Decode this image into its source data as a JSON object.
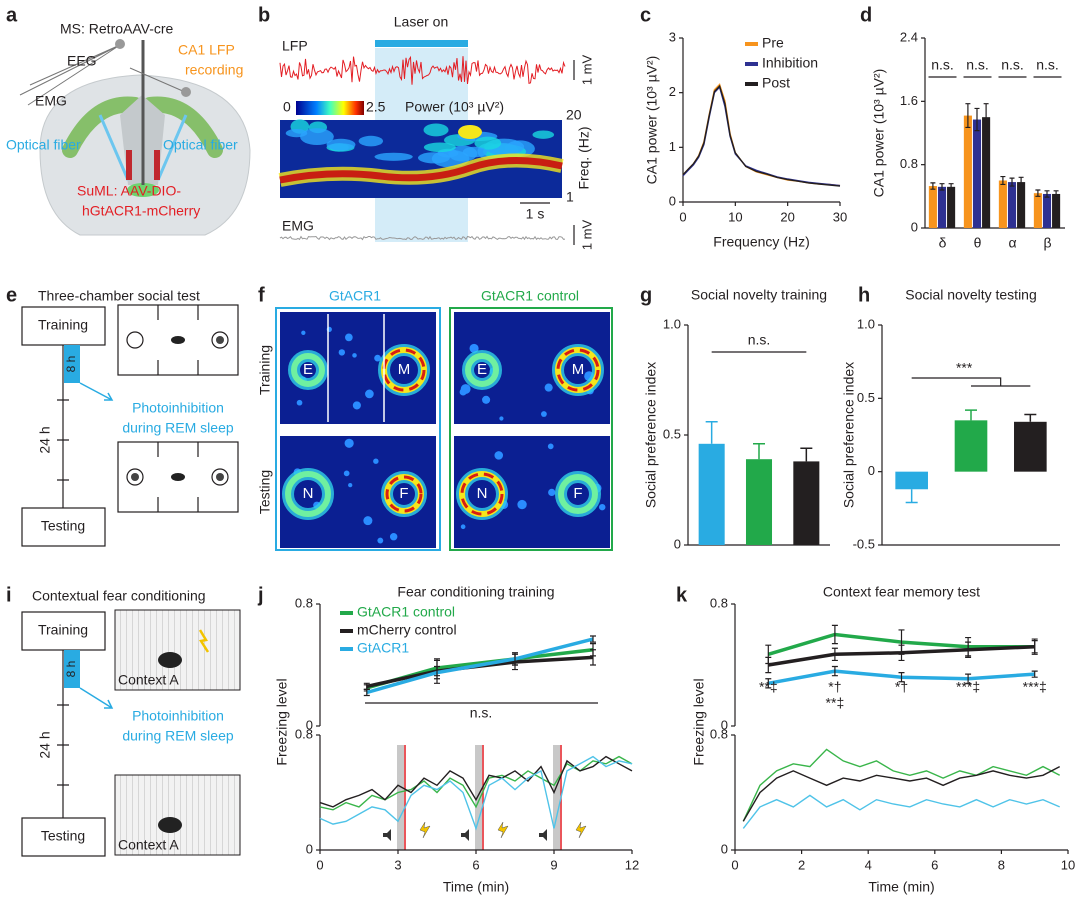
{
  "panel_labels": [
    "a",
    "b",
    "c",
    "d",
    "e",
    "f",
    "g",
    "h",
    "i",
    "j",
    "k"
  ],
  "a": {
    "ms": "MS: RetroAAV-cre",
    "eeg": "EEG",
    "lfp": [
      "CA1 LFP",
      "recording"
    ],
    "emg": "EMG",
    "fiber_left": "Optical fiber",
    "fiber_right": "Optical fiber",
    "suml": [
      "SuML: AAV-DIO-",
      "hGtACR1-mCherry"
    ]
  },
  "b": {
    "laser": "Laser on",
    "lfp": "LFP",
    "lfp_scale": "1 mV",
    "cbar_ticks": [
      0,
      2.5
    ],
    "cbar_label": "Power (10³ µV²)",
    "freq_ticks": [
      1,
      20
    ],
    "freq_label": "Freq. (Hz)",
    "time_scale": "1 s",
    "emg": "EMG",
    "emg_scale": "1 mV"
  },
  "e": {
    "title": "Three-chamber social test",
    "training": "Training",
    "gap": "8 h",
    "day": "24 h",
    "photo": [
      "Photoinhibition",
      "during REM sleep"
    ],
    "testing": "Testing"
  },
  "f": {
    "groups": [
      "GtACR1",
      "GtACR1 control"
    ],
    "rows": [
      "Training",
      "Testing"
    ],
    "labels": [
      [
        "E",
        "M",
        "E",
        "M"
      ],
      [
        "N",
        "F",
        "N",
        "F"
      ]
    ]
  },
  "i": {
    "title": "Contextual fear conditioning",
    "training": "Training",
    "gap": "8 h",
    "context": [
      "Context A",
      "Context A"
    ],
    "day": "24 h",
    "photo": [
      "Photoinhibition",
      "during REM sleep"
    ],
    "testing": "Testing"
  },
  "chart_data": [
    {
      "type": "line",
      "xlabel": "Frequency (Hz)",
      "ylabel": "CA1 power (10³ µV²)",
      "xlim": [
        0,
        30
      ],
      "xticks": [
        0,
        10,
        20,
        30
      ],
      "ylim": [
        0,
        3
      ],
      "yticks": [
        0,
        1,
        2,
        3
      ],
      "x": [
        0,
        1,
        2,
        3,
        4,
        5,
        6,
        7,
        8,
        9,
        10,
        12,
        14,
        16,
        18,
        20,
        22,
        24,
        26,
        28,
        30
      ],
      "series": [
        {
          "name": "Pre",
          "color": "#f7941d",
          "values": [
            0.5,
            0.6,
            0.7,
            0.85,
            1.1,
            1.6,
            2.05,
            2.15,
            1.85,
            1.25,
            0.9,
            0.65,
            0.55,
            0.5,
            0.45,
            0.4,
            0.38,
            0.35,
            0.33,
            0.32,
            0.3
          ]
        },
        {
          "name": "Inhibition",
          "color": "#2e3192",
          "values": [
            0.48,
            0.58,
            0.68,
            0.82,
            1.05,
            1.55,
            2.0,
            2.1,
            1.75,
            1.2,
            0.88,
            0.66,
            0.58,
            0.52,
            0.46,
            0.42,
            0.39,
            0.36,
            0.34,
            0.32,
            0.3
          ]
        },
        {
          "name": "Post",
          "color": "#231f20",
          "values": [
            0.5,
            0.6,
            0.7,
            0.84,
            1.08,
            1.58,
            2.02,
            2.12,
            1.8,
            1.22,
            0.9,
            0.65,
            0.56,
            0.51,
            0.45,
            0.41,
            0.38,
            0.35,
            0.33,
            0.31,
            0.29
          ]
        }
      ]
    },
    {
      "type": "bar",
      "ylabel": "CA1 power (10³ µV²)",
      "categories": [
        "δ",
        "θ",
        "α",
        "β"
      ],
      "ylim": [
        0,
        2.4
      ],
      "yticks": [
        0,
        0.8,
        1.6,
        2.4
      ],
      "annotations": [
        "n.s.",
        "n.s.",
        "n.s.",
        "n.s."
      ],
      "series": [
        {
          "name": "Pre",
          "color": "#f7941d",
          "values": [
            0.53,
            1.42,
            0.6,
            0.44
          ],
          "errors": [
            0.04,
            0.15,
            0.05,
            0.04
          ]
        },
        {
          "name": "Inhibition",
          "color": "#2e3192",
          "values": [
            0.52,
            1.37,
            0.58,
            0.43
          ],
          "errors": [
            0.04,
            0.14,
            0.05,
            0.04
          ]
        },
        {
          "name": "Post",
          "color": "#231f20",
          "values": [
            0.52,
            1.4,
            0.58,
            0.43
          ],
          "errors": [
            0.04,
            0.17,
            0.06,
            0.04
          ]
        }
      ]
    },
    {
      "type": "bar",
      "title": "Social novelty training",
      "ylabel": "Social preference index",
      "ylim": [
        0,
        1
      ],
      "yticks": [
        0,
        0.5,
        {
          "value": 1,
          "label": "1.0"
        }
      ],
      "values": [
        0.46,
        0.39,
        0.38
      ],
      "errors": [
        0.1,
        0.07,
        0.06
      ],
      "colors": [
        "#29abe2",
        "#22a94a",
        "#231f20"
      ],
      "annotations": [
        "n.s."
      ]
    },
    {
      "type": "bar",
      "title": "Social novelty testing",
      "ylabel": "Social preference index",
      "ylim": [
        -0.5,
        1
      ],
      "yticks": [
        -0.5,
        0,
        0.5,
        {
          "value": 1,
          "label": "1.0"
        }
      ],
      "values": [
        -0.12,
        0.35,
        0.34
      ],
      "errors": [
        0.09,
        0.07,
        0.05
      ],
      "colors": [
        "#29abe2",
        "#22a94a",
        "#231f20"
      ],
      "annotations": [
        "***"
      ]
    },
    {
      "type": "line",
      "title": "Fear conditioning training",
      "xlim": [
        0,
        12
      ],
      "ylim": [
        0,
        0.8
      ],
      "yticks": [
        0,
        0.8
      ],
      "annotations": [
        "n.s."
      ],
      "x": [
        1.8,
        4.5,
        7.5,
        10.5
      ],
      "series": [
        {
          "name": "GtACR1 control",
          "color": "#22a94a",
          "values": [
            0.25,
            0.38,
            0.44,
            0.5
          ],
          "errors": [
            0.02,
            0.05,
            0.04,
            0.04
          ]
        },
        {
          "name": "mCherry control",
          "color": "#231f20",
          "values": [
            0.26,
            0.36,
            0.42,
            0.45
          ],
          "errors": [
            0.02,
            0.08,
            0.05,
            0.05
          ]
        },
        {
          "name": "GtACR1",
          "color": "#29abe2",
          "values": [
            0.22,
            0.35,
            0.44,
            0.57
          ],
          "errors": [
            0.02,
            0.04,
            0.04,
            0.02
          ]
        }
      ]
    },
    {
      "type": "line",
      "xlabel": "Time (min)",
      "ylabel": "Freezing level",
      "xlim": [
        0,
        12
      ],
      "xticks": [
        0,
        3,
        6,
        9,
        12
      ],
      "ylim": [
        0,
        0.8
      ],
      "yticks": [
        0,
        0.8
      ],
      "x": [
        0,
        0.5,
        1,
        1.5,
        2,
        2.5,
        3,
        3.5,
        4,
        4.5,
        5,
        5.5,
        6,
        6.5,
        7,
        7.5,
        8,
        8.5,
        9,
        9.5,
        10,
        10.5,
        11,
        11.5,
        12
      ],
      "series": [
        {
          "name": "GtACR1 control",
          "color": "#39b54a",
          "values": [
            0.3,
            0.28,
            0.33,
            0.3,
            0.38,
            0.35,
            0.4,
            0.42,
            0.48,
            0.4,
            0.5,
            0.45,
            0.3,
            0.5,
            0.52,
            0.48,
            0.55,
            0.5,
            0.45,
            0.6,
            0.55,
            0.62,
            0.6,
            0.65,
            0.6
          ]
        },
        {
          "name": "mCherry control",
          "color": "#231f20",
          "values": [
            0.33,
            0.3,
            0.35,
            0.38,
            0.42,
            0.35,
            0.45,
            0.4,
            0.5,
            0.45,
            0.55,
            0.5,
            0.35,
            0.52,
            0.5,
            0.55,
            0.48,
            0.58,
            0.4,
            0.62,
            0.55,
            0.58,
            0.65,
            0.6,
            0.55
          ]
        },
        {
          "name": "GtACR1",
          "color": "#4fc3e8",
          "values": [
            0.22,
            0.18,
            0.2,
            0.25,
            0.3,
            0.28,
            0.2,
            0.38,
            0.45,
            0.42,
            0.48,
            0.4,
            0.15,
            0.45,
            0.5,
            0.42,
            0.5,
            0.55,
            0.15,
            0.55,
            0.6,
            0.65,
            0.58,
            0.62,
            0.6
          ]
        }
      ]
    },
    {
      "type": "line",
      "title": "Context fear memory test",
      "xlim": [
        0,
        10
      ],
      "ylim": [
        0,
        0.8
      ],
      "yticks": [
        0,
        0.8
      ],
      "annotations": [
        "**‡",
        "*†",
        "**‡",
        "*†",
        "***‡",
        "***‡"
      ],
      "x": [
        1,
        3,
        5,
        7,
        9
      ],
      "series": [
        {
          "name": "GtACR1 control",
          "color": "#22a94a",
          "values": [
            0.47,
            0.6,
            0.55,
            0.52,
            0.52
          ],
          "errors": [
            0.06,
            0.06,
            0.08,
            0.06,
            0.04
          ]
        },
        {
          "name": "mCherry control",
          "color": "#231f20",
          "values": [
            0.4,
            0.47,
            0.48,
            0.5,
            0.52
          ],
          "errors": [
            0.05,
            0.04,
            0.05,
            0.05,
            0.05
          ]
        },
        {
          "name": "GtACR1",
          "color": "#29abe2",
          "values": [
            0.28,
            0.36,
            0.32,
            0.31,
            0.34
          ],
          "errors": [
            0.03,
            0.03,
            0.03,
            0.03,
            0.02
          ]
        }
      ]
    },
    {
      "type": "line",
      "xlabel": "Time (min)",
      "ylabel": "Freezing level",
      "xlim": [
        0,
        10
      ],
      "xticks": [
        0,
        2,
        4,
        6,
        8,
        10
      ],
      "ylim": [
        0,
        0.8
      ],
      "yticks": [
        0,
        0.8
      ],
      "x": [
        0.25,
        0.75,
        1.25,
        1.75,
        2.25,
        2.75,
        3.25,
        3.75,
        4.25,
        4.75,
        5.25,
        5.75,
        6.25,
        6.75,
        7.25,
        7.75,
        8.25,
        8.75,
        9.25,
        9.75
      ],
      "series": [
        {
          "name": "GtACR1 control",
          "color": "#39b54a",
          "values": [
            0.2,
            0.45,
            0.55,
            0.6,
            0.58,
            0.7,
            0.62,
            0.58,
            0.62,
            0.55,
            0.52,
            0.55,
            0.5,
            0.55,
            0.52,
            0.58,
            0.55,
            0.52,
            0.58,
            0.52
          ]
        },
        {
          "name": "mCherry control",
          "color": "#231f20",
          "values": [
            0.2,
            0.4,
            0.5,
            0.55,
            0.5,
            0.45,
            0.5,
            0.48,
            0.52,
            0.5,
            0.48,
            0.5,
            0.45,
            0.5,
            0.52,
            0.55,
            0.52,
            0.5,
            0.52,
            0.58
          ]
        },
        {
          "name": "GtACR1",
          "color": "#4fc3e8",
          "values": [
            0.15,
            0.3,
            0.35,
            0.3,
            0.38,
            0.3,
            0.35,
            0.28,
            0.35,
            0.32,
            0.3,
            0.35,
            0.32,
            0.3,
            0.35,
            0.3,
            0.35,
            0.32,
            0.35,
            0.3
          ]
        }
      ]
    }
  ]
}
